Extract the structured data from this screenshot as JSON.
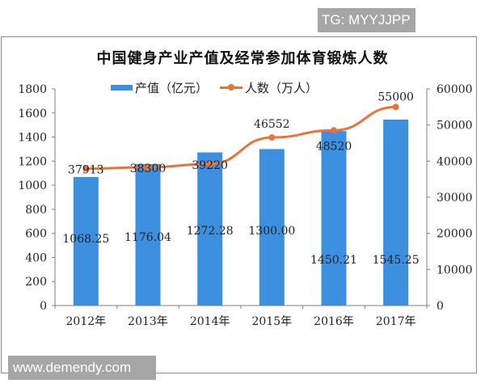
{
  "badges": {
    "tg": "TG: MYYJJPP",
    "url": "www.demendy.com"
  },
  "colors": {
    "bar": "#3d8fe0",
    "line": "#e8743b",
    "axis": "#7f7f7f",
    "label": "#222222"
  },
  "legend": {
    "bar_label": "产值（亿元）",
    "line_label": "人数（万人）"
  },
  "chart_data": {
    "type": "bar+line",
    "title": "中国健身产业产值及经常参加体育锻炼人数",
    "categories": [
      "2012年",
      "2013年",
      "2014年",
      "2015年",
      "2016年",
      "2017年"
    ],
    "series": [
      {
        "name": "产值（亿元）",
        "type": "bar",
        "axis": "left",
        "values": [
          1068.25,
          1176.04,
          1272.28,
          1300.0,
          1450.21,
          1545.25
        ],
        "labels": [
          "1068.25",
          "1176.04",
          "1272.28",
          "1300.00",
          "1450.21",
          "1545.25"
        ]
      },
      {
        "name": "人数（万人）",
        "type": "line",
        "axis": "right",
        "values": [
          37913,
          38300,
          39220,
          46552,
          48520,
          55000
        ],
        "labels": [
          "37913",
          "38300",
          "39220",
          "46552",
          "48520",
          "55000"
        ]
      }
    ],
    "left_axis": {
      "min": 0,
      "max": 1800,
      "step": 200,
      "ticks": [
        "0",
        "200",
        "400",
        "600",
        "800",
        "1000",
        "1200",
        "1400",
        "1600",
        "1800"
      ]
    },
    "right_axis": {
      "min": 0,
      "max": 60000,
      "step": 10000,
      "ticks": [
        "0",
        "10000",
        "20000",
        "30000",
        "40000",
        "50000",
        "60000"
      ]
    },
    "legend_position": "top",
    "grid": false
  }
}
